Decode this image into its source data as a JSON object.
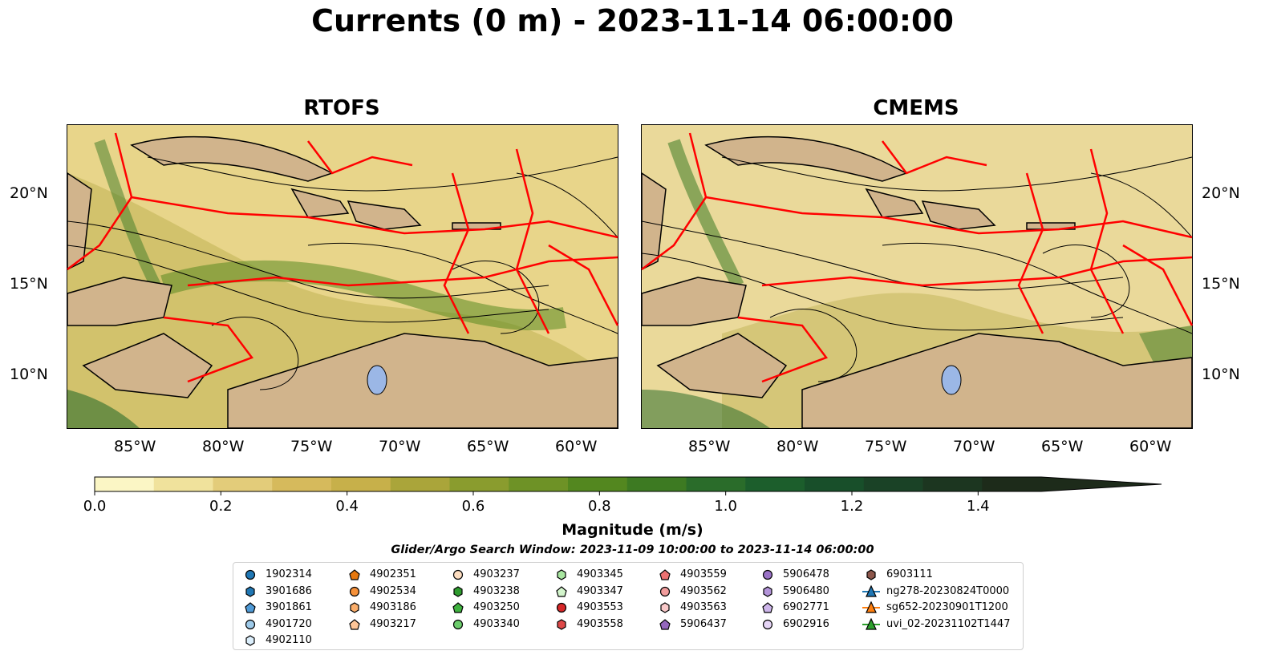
{
  "title": "Currents (0 m) - 2023-11-14 06:00:00",
  "panels": [
    {
      "title": "RTOFS"
    },
    {
      "title": "CMEMS"
    }
  ],
  "lat_ticks": [
    "20°N",
    "15°N",
    "10°N"
  ],
  "lon_ticks": [
    "85°W",
    "80°W",
    "75°W",
    "70°W",
    "65°W",
    "60°W"
  ],
  "colorbar": {
    "label": "Magnitude (m/s)",
    "ticks": [
      "0.0",
      "0.2",
      "0.4",
      "0.6",
      "0.8",
      "1.0",
      "1.2",
      "1.4"
    ],
    "range": [
      0,
      1.5
    ],
    "colors": [
      "#fbf6c5",
      "#f0e29c",
      "#e3cc7a",
      "#d6ba5c",
      "#c7b04a",
      "#aaa53a",
      "#8a9c2e",
      "#6e9226",
      "#53871f",
      "#3d7a22",
      "#2a6c2a",
      "#1c5e2c",
      "#184f2a",
      "#1a4226",
      "#1c3620",
      "#1d2b1a"
    ]
  },
  "search_window": "Glider/Argo Search Window: 2023-11-09 10:00:00 to 2023-11-14 06:00:00",
  "legend": [
    {
      "label": "1902314",
      "marker": "circle",
      "color": "#1f77b4"
    },
    {
      "label": "3901686",
      "marker": "hexagon",
      "color": "#1f77b4"
    },
    {
      "label": "3901861",
      "marker": "pentagon",
      "color": "#4f9ad6"
    },
    {
      "label": "4901720",
      "marker": "circle",
      "color": "#9ecae9"
    },
    {
      "label": "4902110",
      "marker": "hexagon",
      "color": "#dbeefb"
    },
    {
      "label": "4902351",
      "marker": "pentagon",
      "color": "#e6780f"
    },
    {
      "label": "4902534",
      "marker": "circle",
      "color": "#f6913a"
    },
    {
      "label": "4903186",
      "marker": "hexagon",
      "color": "#fbae6b"
    },
    {
      "label": "4903217",
      "marker": "pentagon",
      "color": "#fdc597"
    },
    {
      "label": "4903237",
      "marker": "circle",
      "color": "#fdddc0"
    },
    {
      "label": "4903238",
      "marker": "hexagon",
      "color": "#2e9b2e"
    },
    {
      "label": "4903250",
      "marker": "pentagon",
      "color": "#3fb23f"
    },
    {
      "label": "4903340",
      "marker": "circle",
      "color": "#6ccc6c"
    },
    {
      "label": "4903345",
      "marker": "hexagon",
      "color": "#a8e6a0"
    },
    {
      "label": "4903347",
      "marker": "pentagon",
      "color": "#d3f5cc"
    },
    {
      "label": "4903553",
      "marker": "circle",
      "color": "#d62728"
    },
    {
      "label": "4903558",
      "marker": "hexagon",
      "color": "#de4848"
    },
    {
      "label": "4903559",
      "marker": "pentagon",
      "color": "#ec7272"
    },
    {
      "label": "4903562",
      "marker": "circle",
      "color": "#f19c9c"
    },
    {
      "label": "4903563",
      "marker": "hexagon",
      "color": "#f9c9c9"
    },
    {
      "label": "5906437",
      "marker": "pentagon",
      "color": "#9467bd"
    },
    {
      "label": "5906478",
      "marker": "circle",
      "color": "#9a72c6"
    },
    {
      "label": "5906480",
      "marker": "hexagon",
      "color": "#b394d9"
    },
    {
      "label": "6902771",
      "marker": "pentagon",
      "color": "#cdb5ea"
    },
    {
      "label": "6902916",
      "marker": "circle",
      "color": "#e6d5f6"
    },
    {
      "label": "6903111",
      "marker": "hexagon",
      "color": "#8c564b"
    },
    {
      "label": "ng278-20230824T0000",
      "marker": "triangle-line",
      "color": "#1f77b4"
    },
    {
      "label": "sg652-20230901T1200",
      "marker": "triangle-line",
      "color": "#ff7f0e"
    },
    {
      "label": "uvi_02-20231102T1447",
      "marker": "triangle-line",
      "color": "#2ca02c"
    }
  ],
  "colors": {
    "land": "#d1b48c",
    "boundary": "#ff0000",
    "lakes": "#9bb7e6"
  }
}
